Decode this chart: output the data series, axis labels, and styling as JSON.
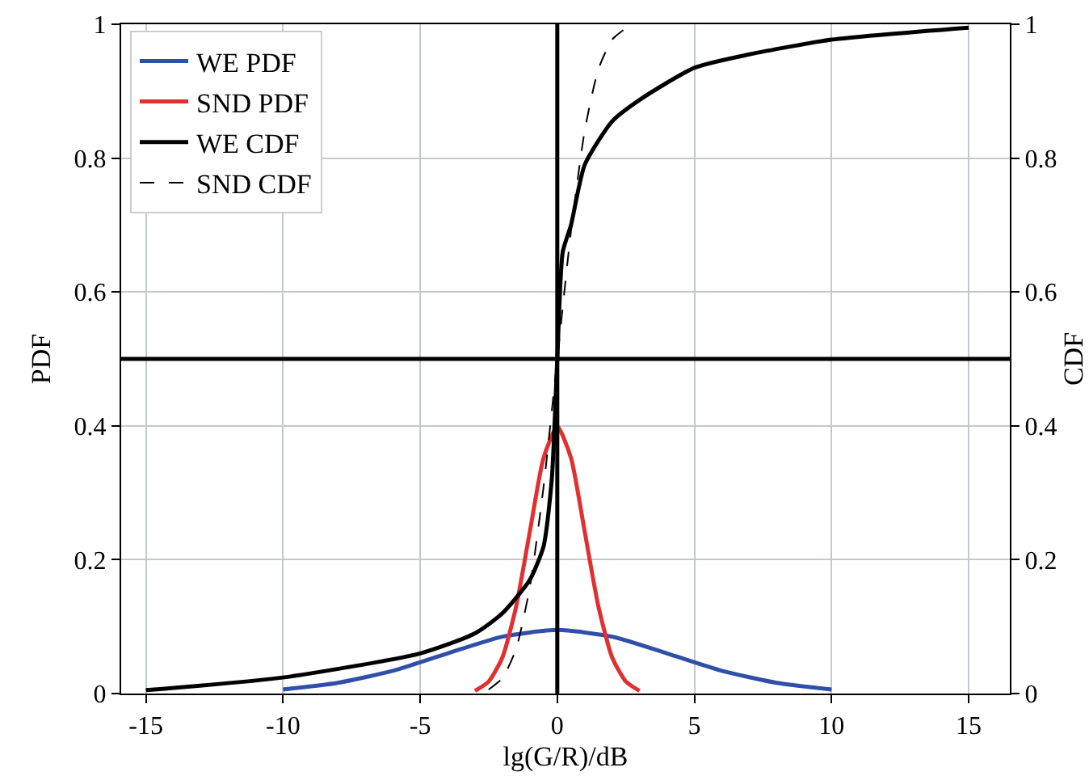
{
  "chart_data": {
    "type": "line",
    "xlabel": "lg(G/R)/dB",
    "ylabel": "PDF",
    "y2label": "CDF",
    "xlim": [
      -15.9,
      16.5
    ],
    "xticks": [
      -15,
      -10,
      -5,
      0,
      5,
      10,
      15
    ],
    "ylim": [
      0,
      1
    ],
    "yticks": [
      0,
      0.2,
      0.4,
      0.6,
      0.8,
      1.0
    ],
    "y2lim": [
      0,
      1
    ],
    "y2ticks": [
      0,
      0.2,
      0.4,
      0.6,
      0.8,
      1.0
    ],
    "grid": true,
    "legend": "top left",
    "line_style": "solid",
    "marker": "none",
    "ref_lines": [
      {
        "axis": "y",
        "value": 0.5,
        "color": "#000000"
      },
      {
        "axis": "x",
        "value": 0,
        "color": "#000000"
      }
    ],
    "series": [
      {
        "name": "WE PDF",
        "color": "#2f4fa8",
        "x": [
          -10,
          -8,
          -6,
          -4,
          -2,
          0,
          2,
          4,
          6,
          8,
          10
        ],
        "values": [
          0.006,
          0.016,
          0.034,
          0.06,
          0.085,
          0.095,
          0.085,
          0.06,
          0.034,
          0.016,
          0.006
        ]
      },
      {
        "name": "SND PDF",
        "color": "#e03030",
        "x": [
          -3,
          -2.5,
          -2,
          -1.5,
          -1,
          -0.5,
          0,
          0.5,
          1,
          1.5,
          2,
          2.5,
          3
        ],
        "values": [
          0.004,
          0.018,
          0.054,
          0.13,
          0.242,
          0.352,
          0.399,
          0.352,
          0.242,
          0.13,
          0.054,
          0.018,
          0.004
        ]
      },
      {
        "name": "WE CDF",
        "color": "#000000",
        "axis": "y2",
        "x": [
          -15,
          -10,
          -5,
          -3,
          -2,
          -1,
          -0.5,
          -0.2,
          0,
          0.2,
          0.5,
          1,
          2,
          3,
          5,
          7,
          10,
          15
        ],
        "values": [
          0.005,
          0.024,
          0.06,
          0.09,
          0.12,
          0.17,
          0.22,
          0.32,
          0.5,
          0.66,
          0.7,
          0.79,
          0.855,
          0.887,
          0.935,
          0.955,
          0.977,
          0.995
        ]
      },
      {
        "name": "SND CDF",
        "color": "#000000",
        "axis": "y2",
        "line_style": "dashed",
        "x": [
          -2.5,
          -2,
          -1.5,
          -1,
          -0.5,
          0,
          0.5,
          1,
          1.5,
          2,
          2.5
        ],
        "values": [
          0.006,
          0.023,
          0.067,
          0.159,
          0.309,
          0.5,
          0.691,
          0.841,
          0.933,
          0.977,
          0.994
        ]
      }
    ]
  }
}
